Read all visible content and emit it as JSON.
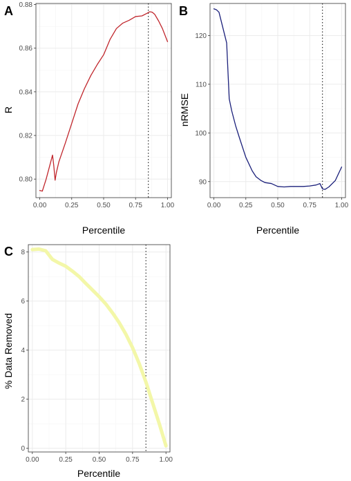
{
  "chart_data": [
    {
      "panel": "A",
      "type": "line",
      "xlabel": "Percentile",
      "ylabel": "R",
      "xlim": [
        -0.03,
        1.03
      ],
      "ylim": [
        0.7915,
        0.8805
      ],
      "xticks": [
        0.0,
        0.25,
        0.5,
        0.75,
        1.0
      ],
      "xtick_labels": [
        "0.00",
        "0.25",
        "0.50",
        "0.75",
        "1.00"
      ],
      "yticks": [
        0.8,
        0.82,
        0.84,
        0.86,
        0.88
      ],
      "ytick_labels": [
        "0.80",
        "0.82",
        "0.84",
        "0.86",
        "0.88"
      ],
      "reference_x": 0.85,
      "line_color": "#c0252b",
      "x": [
        0.0,
        0.02,
        0.05,
        0.1,
        0.11,
        0.12,
        0.13,
        0.15,
        0.2,
        0.25,
        0.3,
        0.35,
        0.4,
        0.45,
        0.5,
        0.55,
        0.6,
        0.65,
        0.7,
        0.75,
        0.8,
        0.84,
        0.86,
        0.88,
        0.9,
        0.93,
        0.96,
        1.0
      ],
      "y": [
        0.7948,
        0.7945,
        0.8,
        0.811,
        0.806,
        0.7995,
        0.803,
        0.808,
        0.8165,
        0.8255,
        0.8345,
        0.8415,
        0.8475,
        0.8525,
        0.857,
        0.864,
        0.869,
        0.8715,
        0.8728,
        0.8745,
        0.8748,
        0.876,
        0.8767,
        0.8765,
        0.8755,
        0.8725,
        0.869,
        0.863
      ]
    },
    {
      "panel": "B",
      "type": "line",
      "xlabel": "Percentile",
      "ylabel": "nRMSE",
      "xlim": [
        -0.03,
        1.03
      ],
      "ylim": [
        86.7,
        126.6
      ],
      "xticks": [
        0.0,
        0.25,
        0.5,
        0.75,
        1.0
      ],
      "xtick_labels": [
        "0.00",
        "0.25",
        "0.50",
        "0.75",
        "1.00"
      ],
      "yticks": [
        90,
        100,
        110,
        120
      ],
      "ytick_labels": [
        "90",
        "100",
        "110",
        "120"
      ],
      "reference_x": 0.85,
      "line_color": "#1a1f7a",
      "x": [
        0.0,
        0.02,
        0.04,
        0.1,
        0.12,
        0.14,
        0.17,
        0.2,
        0.25,
        0.3,
        0.33,
        0.37,
        0.4,
        0.45,
        0.5,
        0.55,
        0.6,
        0.7,
        0.75,
        0.8,
        0.83,
        0.85,
        0.87,
        0.9,
        0.95,
        1.0
      ],
      "y": [
        125.5,
        125.3,
        124.8,
        118.5,
        107.0,
        104.5,
        101.5,
        99.0,
        95.0,
        92.2,
        91.0,
        90.2,
        89.8,
        89.6,
        89.0,
        88.9,
        89.0,
        89.0,
        89.1,
        89.3,
        89.6,
        88.5,
        88.4,
        88.9,
        90.2,
        93.0
      ]
    },
    {
      "panel": "C",
      "type": "line",
      "xlabel": "Percentile",
      "ylabel": "% Data Removed",
      "xlim": [
        -0.03,
        1.03
      ],
      "ylim": [
        -0.15,
        8.3
      ],
      "xticks": [
        0.0,
        0.25,
        0.5,
        0.75,
        1.0
      ],
      "xtick_labels": [
        "0.00",
        "0.25",
        "0.50",
        "0.75",
        "1.00"
      ],
      "yticks": [
        0,
        2,
        4,
        6,
        8
      ],
      "ytick_labels": [
        "0",
        "2",
        "4",
        "6",
        "8"
      ],
      "reference_x": 0.85,
      "line_color": "#f3f7a8",
      "x": [
        0.0,
        0.05,
        0.1,
        0.15,
        0.2,
        0.25,
        0.3,
        0.35,
        0.4,
        0.45,
        0.5,
        0.55,
        0.6,
        0.65,
        0.7,
        0.75,
        0.8,
        0.85,
        0.9,
        0.95,
        1.0
      ],
      "y": [
        8.1,
        8.12,
        8.05,
        7.7,
        7.55,
        7.42,
        7.22,
        7.0,
        6.72,
        6.45,
        6.18,
        5.88,
        5.52,
        5.12,
        4.65,
        4.1,
        3.45,
        2.7,
        1.85,
        1.0,
        0.1
      ]
    }
  ]
}
